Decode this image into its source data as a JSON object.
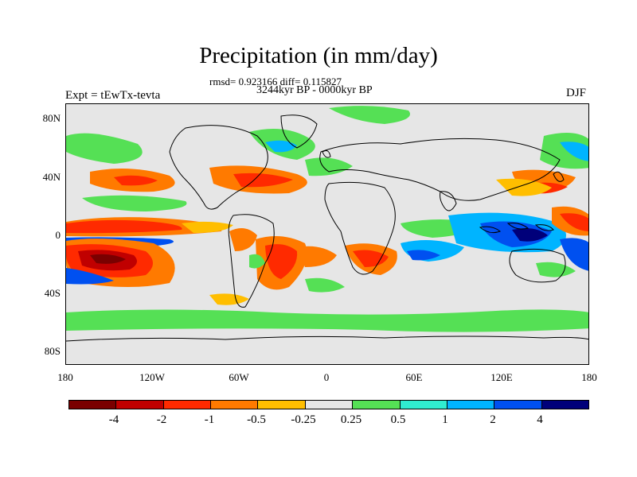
{
  "title": "Precipitation (in mm/day)",
  "stats": "rmsd= 0.923166 diff= 0.115827",
  "period": "3244kyr BP - 0000kyr BP",
  "experiment": "Expt = tEwTx-tevta",
  "season": "DJF",
  "lat_labels": [
    "80N",
    "40N",
    "0",
    "40S",
    "80S"
  ],
  "lon_labels": [
    "180",
    "120W",
    "60W",
    "0",
    "60E",
    "120E",
    "180"
  ],
  "colorbar": {
    "colors": [
      "#7a0000",
      "#c00000",
      "#ff2a00",
      "#ff7a00",
      "#ffbe00",
      "#e6e6e6",
      "#55e055",
      "#30ecd0",
      "#00b4ff",
      "#0050f0",
      "#00007a"
    ],
    "labels": [
      "-4",
      "-2",
      "-1",
      "-0.5",
      "-0.25",
      "0.25",
      "0.5",
      "1",
      "2",
      "4"
    ]
  },
  "colors": {
    "neutral": "#e6e6e6",
    "coastline": "#000000"
  }
}
